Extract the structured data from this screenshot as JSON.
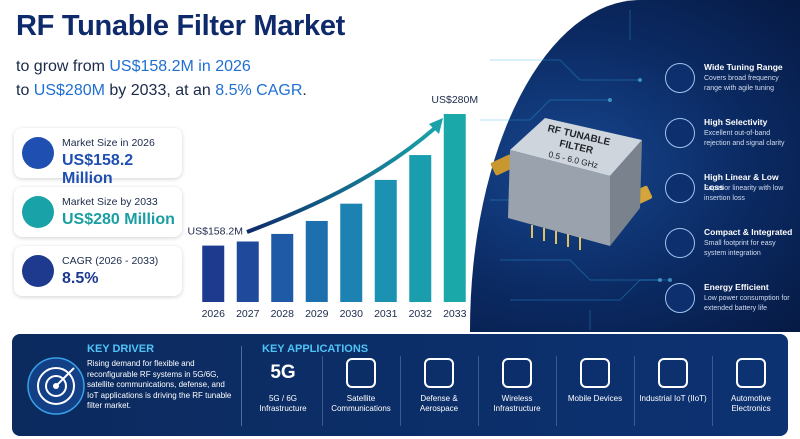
{
  "header": {
    "title": "RF Tunable Filter Market",
    "subtitle_line1": [
      "to grow from ",
      "US$158.2M in 2026"
    ],
    "subtitle_line2": [
      "to ",
      "US$280M",
      " by 2033, at an ",
      "8.5% CAGR",
      "."
    ]
  },
  "cards": [
    {
      "label": "Market Size in 2026",
      "value": "US$158.2 Million"
    },
    {
      "label": "Market Size by 2033",
      "value": "US$280 Million"
    },
    {
      "label": "CAGR (2026 - 2033)",
      "value": "8.5%"
    }
  ],
  "chart_data": {
    "type": "bar",
    "categories": [
      "2026",
      "2027",
      "2028",
      "2029",
      "2030",
      "2031",
      "2032",
      "2033"
    ],
    "values": [
      158.2,
      162,
      169,
      181,
      197,
      219,
      242,
      280
    ],
    "value_labels": [
      "US$158.2M",
      null,
      null,
      null,
      null,
      null,
      null,
      "US$280M"
    ],
    "colors": [
      "#1e3a8f",
      "#1f4a9c",
      "#1f5aa6",
      "#1e6fae",
      "#1c82b2",
      "#1b92b2",
      "#1a9eae",
      "#1aa9a8"
    ],
    "ylim": [
      106,
      280
    ]
  },
  "product": {
    "line1": "RF TUNABLE",
    "line2": "FILTER",
    "line3": "0.5 - 6.0 GHz"
  },
  "features": [
    {
      "title": "Wide Tuning Range",
      "text": "Covers broad frequency range with agile tuning"
    },
    {
      "title": "High Selectivity",
      "text": "Excellent out-of-band rejection and signal clarity"
    },
    {
      "title": "High Linear & Low Loss",
      "text": "Superior linearity with low insertion loss"
    },
    {
      "title": "Compact & Integrated",
      "text": "Small footprint for easy system integration"
    },
    {
      "title": "Energy Efficient",
      "text": "Low power consumption for extended battery life"
    }
  ],
  "driver": {
    "title": "KEY DRIVER",
    "text": "Rising demand for flexible and reconfigurable RF systems in 5G/6G, satellite communications, defense, and IoT applications is driving the RF tunable filter market."
  },
  "applications": {
    "title": "KEY APPLICATIONS",
    "icon_text": "5G",
    "items": [
      "5G / 6G Infrastructure",
      "Satellite Communications",
      "Defense & Aerospace",
      "Wireless Infrastructure",
      "Mobile Devices",
      "Industrial IoT (IIoT)",
      "Automotive Electronics"
    ]
  }
}
